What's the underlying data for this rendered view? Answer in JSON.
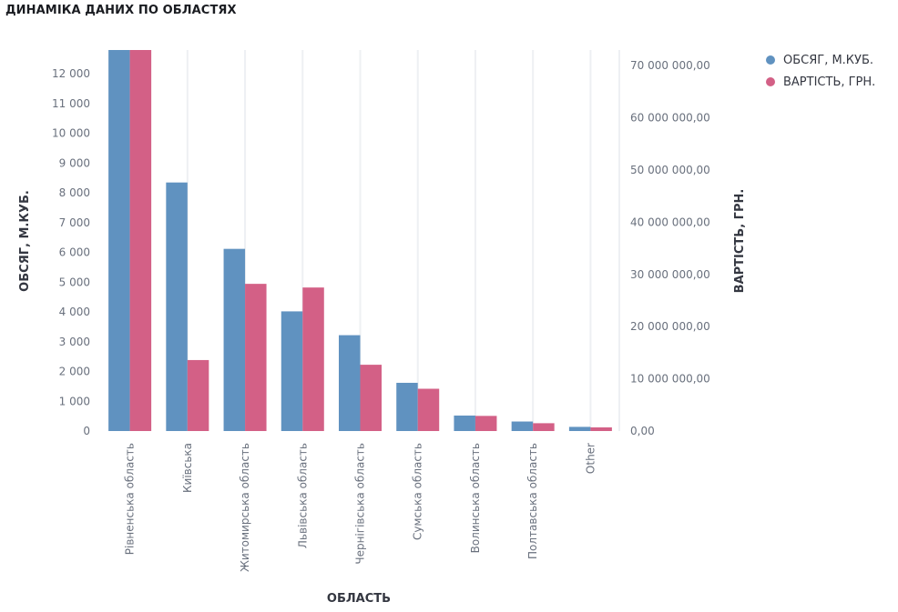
{
  "title": "ДИНАМІКА ДАНИХ ПО ОБЛАСТЯХ",
  "legend": [
    {
      "label": "ОБСЯГ, М.КУБ.",
      "color": "#6092c0"
    },
    {
      "label": "ВАРТІСТЬ, ГРН.",
      "color": "#d36086"
    }
  ],
  "chart_data": {
    "type": "bar",
    "xlabel": "ОБЛАСТЬ",
    "ylabel_left": "ОБСЯГ, М.КУБ.",
    "ylabel_right": "ВАРТІСТЬ, ГРН.",
    "categories": [
      "Рівненська область",
      "Київська",
      "Житомирська область",
      "Львівська область",
      "Чернігівська область",
      "Сумська область",
      "Волинська область",
      "Полтавська область",
      "Other"
    ],
    "series": [
      {
        "name": "ОБСЯГ, М.КУБ.",
        "axis": "left",
        "color": "#6092c0",
        "values": [
          12800,
          8350,
          6120,
          4020,
          3220,
          1620,
          520,
          320,
          140
        ]
      },
      {
        "name": "ВАРТІСТЬ, ГРН.",
        "axis": "right",
        "color": "#d36086",
        "values": [
          73000000,
          13600000,
          28200000,
          27500000,
          12700000,
          8100000,
          2900000,
          1500000,
          700000
        ]
      }
    ],
    "ylim_left": [
      0,
      12800
    ],
    "ylim_right": [
      0,
      73000000
    ],
    "yticks_left": [
      "0",
      "1 000",
      "2 000",
      "3 000",
      "4 000",
      "5 000",
      "6 000",
      "7 000",
      "8 000",
      "9 000",
      "10 000",
      "11 000",
      "12 000"
    ],
    "yticks_right": [
      "0,00",
      "10 000 000,00",
      "20 000 000,00",
      "30 000 000,00",
      "40 000 000,00",
      "50 000 000,00",
      "60 000 000,00",
      "70 000 000,00"
    ],
    "grid": "vertical"
  }
}
